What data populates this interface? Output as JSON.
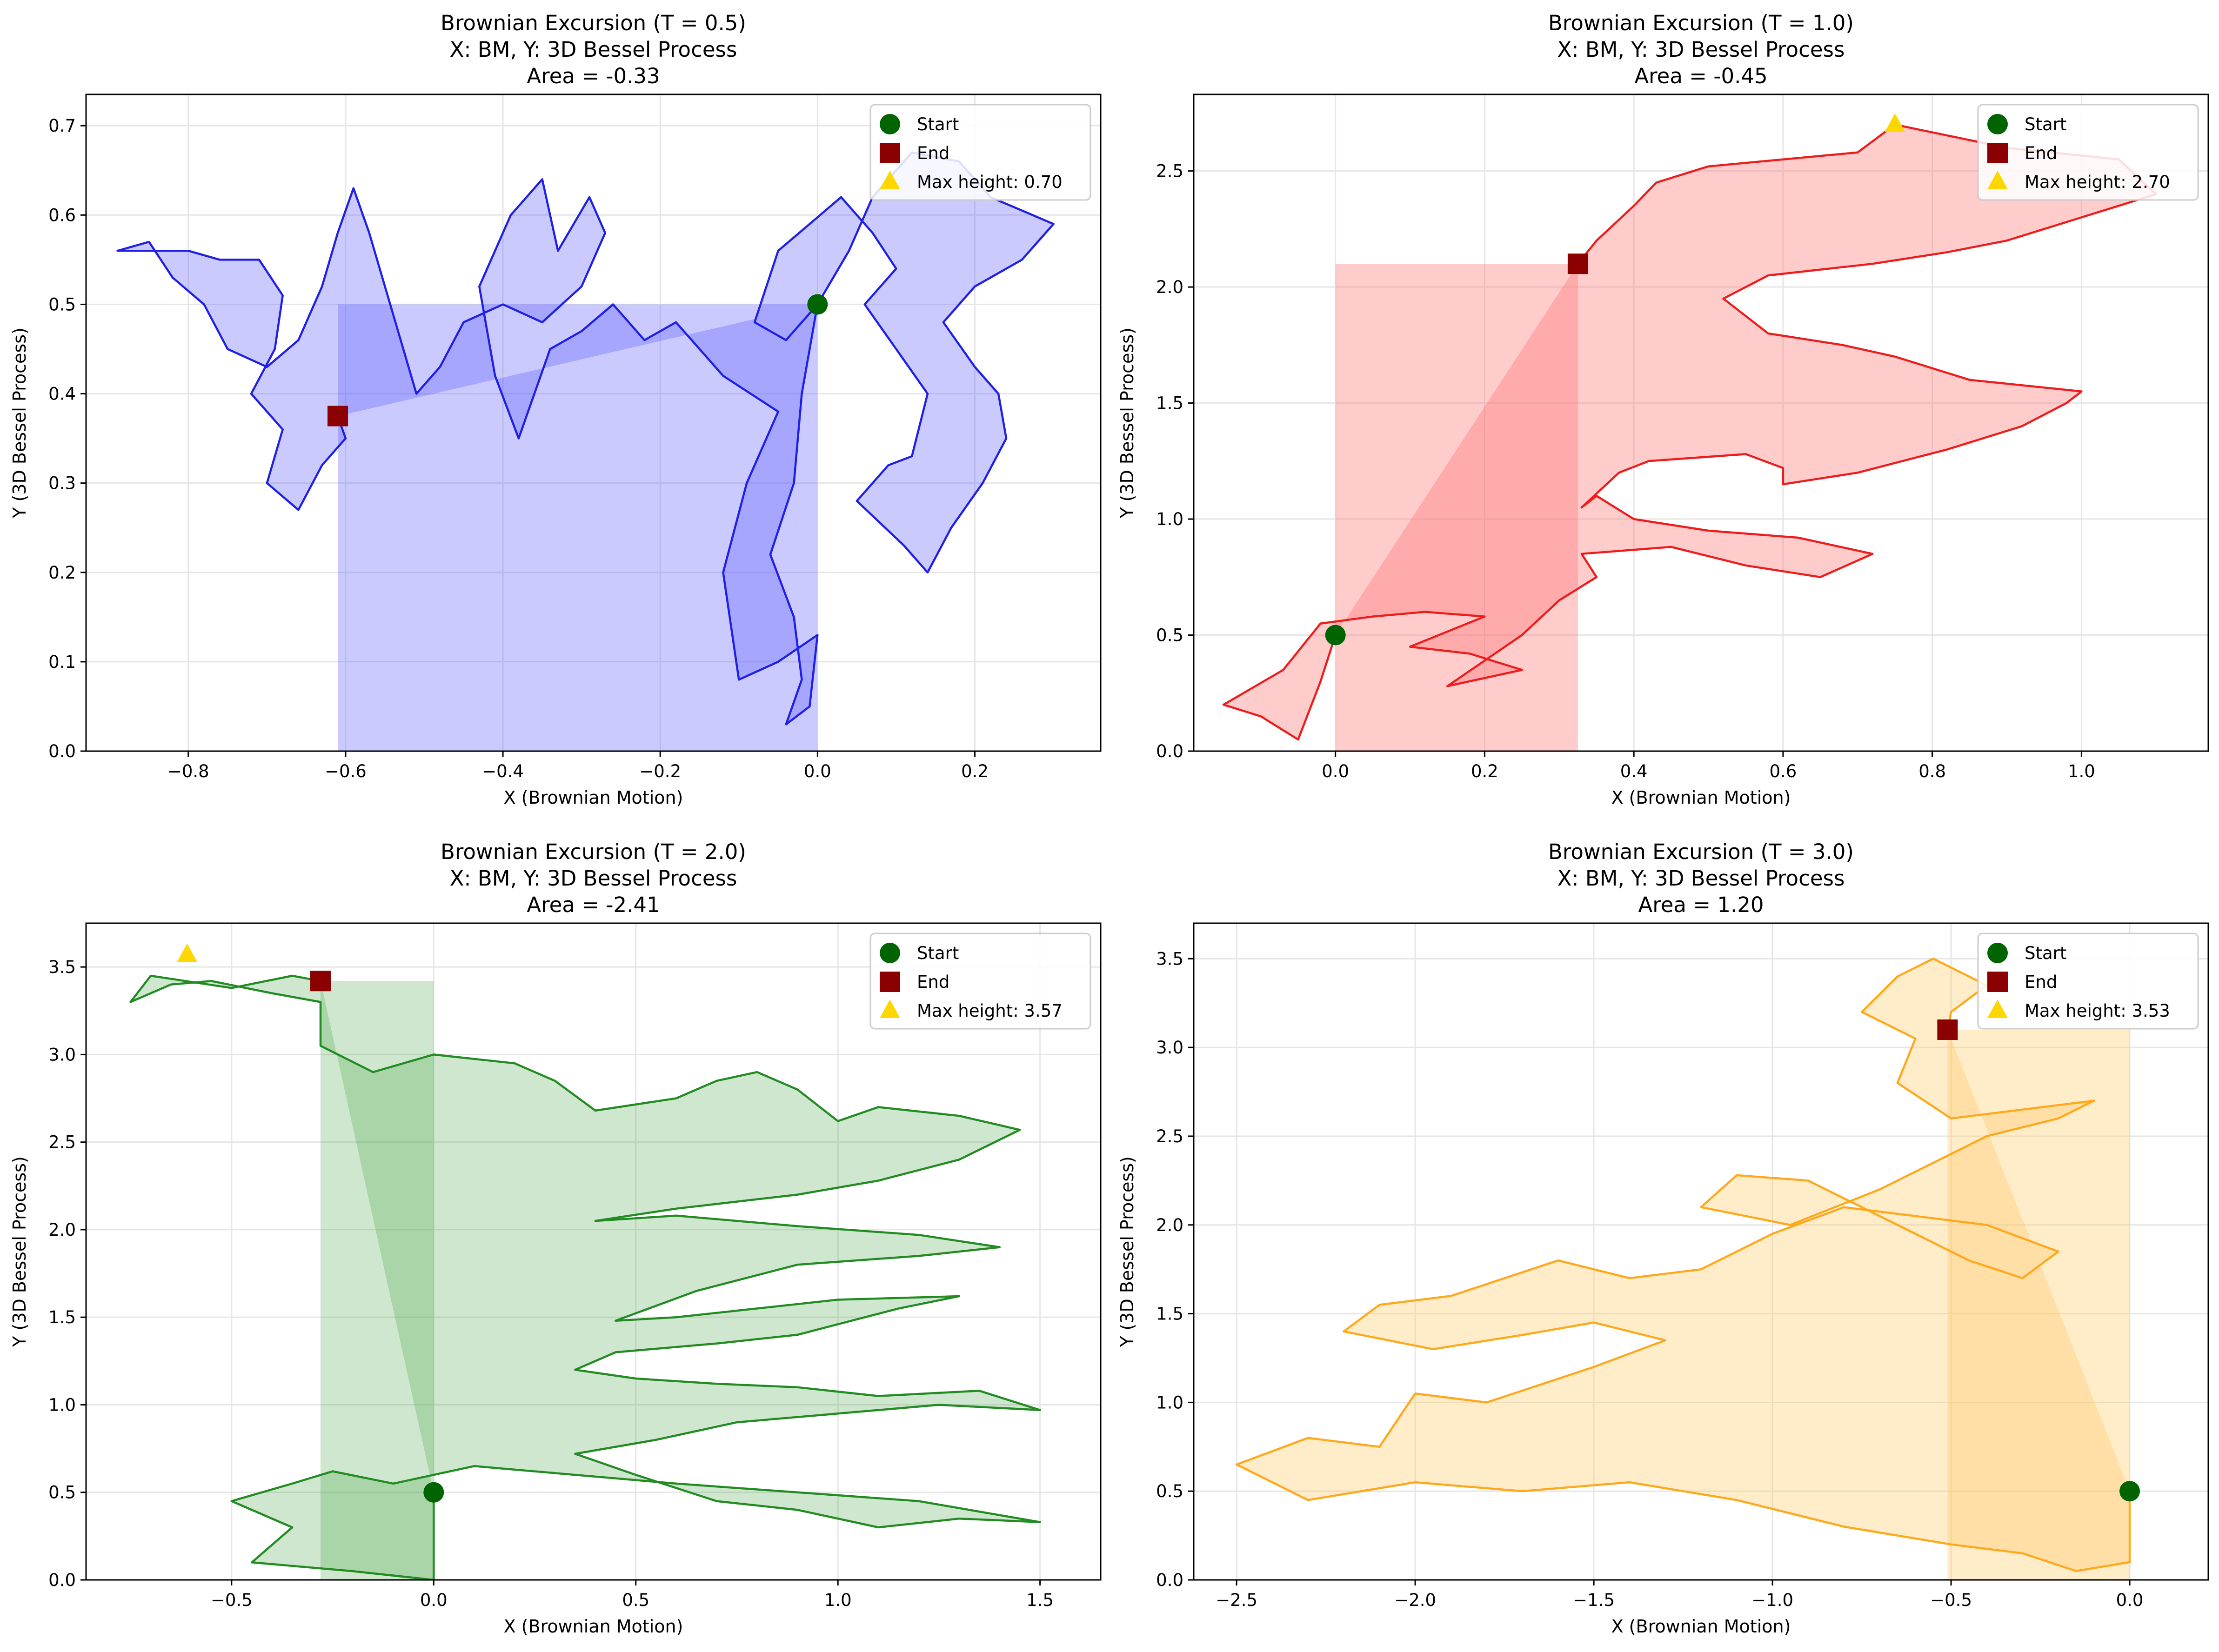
{
  "colors": {
    "start_marker": "#006400",
    "end_marker": "#8b0000",
    "max_marker": "#ffd700",
    "grid": "#e6e6e6",
    "axes": "#000000"
  },
  "chart_data": [
    {
      "type": "line",
      "title_lines": [
        "Brownian Excursion (T = 0.5)",
        "X: BM, Y: 3D Bessel Process",
        "Area = -0.33"
      ],
      "xlabel": "X (Brownian Motion)",
      "ylabel": "Y (3D Bessel Process)",
      "xlim": [
        -0.93,
        0.36
      ],
      "ylim": [
        0,
        0.735
      ],
      "xticks": [
        -0.8,
        -0.6,
        -0.4,
        -0.2,
        0.0,
        0.2
      ],
      "xtick_labels": [
        "−0.8",
        "−0.6",
        "−0.4",
        "−0.2",
        "0.0",
        "0.2"
      ],
      "yticks": [
        0.0,
        0.1,
        0.2,
        0.3,
        0.4,
        0.5,
        0.6,
        0.7
      ],
      "ytick_labels": [
        "0.0",
        "0.1",
        "0.2",
        "0.3",
        "0.4",
        "0.5",
        "0.6",
        "0.7"
      ],
      "grid": true,
      "legend_position": "upper right",
      "series_color": "#1f1fe6",
      "fill_color": "rgba(90,90,255,0.32)",
      "start": [
        0.0,
        0.5
      ],
      "end": [
        -0.61,
        0.375
      ],
      "max_point": null,
      "legend": [
        "Start",
        "End",
        "Max height: 0.70"
      ],
      "path": [
        [
          0.0,
          0.5
        ],
        [
          -0.04,
          0.46
        ],
        [
          -0.08,
          0.48
        ],
        [
          -0.05,
          0.56
        ],
        [
          0.03,
          0.62
        ],
        [
          0.07,
          0.58
        ],
        [
          0.1,
          0.54
        ],
        [
          0.06,
          0.5
        ],
        [
          0.1,
          0.45
        ],
        [
          0.14,
          0.4
        ],
        [
          0.12,
          0.33
        ],
        [
          0.09,
          0.32
        ],
        [
          0.05,
          0.28
        ],
        [
          0.11,
          0.23
        ],
        [
          0.14,
          0.2
        ],
        [
          0.17,
          0.25
        ],
        [
          0.21,
          0.3
        ],
        [
          0.24,
          0.35
        ],
        [
          0.23,
          0.4
        ],
        [
          0.2,
          0.43
        ],
        [
          0.16,
          0.48
        ],
        [
          0.2,
          0.52
        ],
        [
          0.26,
          0.55
        ],
        [
          0.3,
          0.59
        ],
        [
          0.22,
          0.62
        ],
        [
          0.18,
          0.66
        ],
        [
          0.12,
          0.67
        ],
        [
          0.07,
          0.62
        ],
        [
          0.04,
          0.56
        ],
        [
          0.0,
          0.5
        ],
        [
          -0.02,
          0.4
        ],
        [
          -0.03,
          0.3
        ],
        [
          -0.06,
          0.22
        ],
        [
          -0.03,
          0.15
        ],
        [
          -0.02,
          0.08
        ],
        [
          -0.04,
          0.03
        ],
        [
          -0.01,
          0.05
        ],
        [
          0.0,
          0.13
        ],
        [
          -0.05,
          0.1
        ],
        [
          -0.1,
          0.08
        ],
        [
          -0.12,
          0.2
        ],
        [
          -0.09,
          0.3
        ],
        [
          -0.05,
          0.38
        ],
        [
          -0.12,
          0.42
        ],
        [
          -0.18,
          0.48
        ],
        [
          -0.22,
          0.46
        ],
        [
          -0.26,
          0.5
        ],
        [
          -0.3,
          0.47
        ],
        [
          -0.34,
          0.45
        ],
        [
          -0.36,
          0.4
        ],
        [
          -0.38,
          0.35
        ],
        [
          -0.41,
          0.42
        ],
        [
          -0.43,
          0.52
        ],
        [
          -0.39,
          0.6
        ],
        [
          -0.35,
          0.64
        ],
        [
          -0.33,
          0.56
        ],
        [
          -0.29,
          0.62
        ],
        [
          -0.27,
          0.58
        ],
        [
          -0.3,
          0.52
        ],
        [
          -0.35,
          0.48
        ],
        [
          -0.4,
          0.5
        ],
        [
          -0.45,
          0.48
        ],
        [
          -0.48,
          0.43
        ],
        [
          -0.51,
          0.4
        ],
        [
          -0.53,
          0.46
        ],
        [
          -0.55,
          0.52
        ],
        [
          -0.57,
          0.58
        ],
        [
          -0.59,
          0.63
        ],
        [
          -0.61,
          0.58
        ],
        [
          -0.63,
          0.52
        ],
        [
          -0.66,
          0.46
        ],
        [
          -0.7,
          0.43
        ],
        [
          -0.75,
          0.45
        ],
        [
          -0.78,
          0.5
        ],
        [
          -0.82,
          0.53
        ],
        [
          -0.85,
          0.57
        ],
        [
          -0.89,
          0.56
        ],
        [
          -0.85,
          0.56
        ],
        [
          -0.8,
          0.56
        ],
        [
          -0.76,
          0.55
        ],
        [
          -0.71,
          0.55
        ],
        [
          -0.68,
          0.51
        ],
        [
          -0.69,
          0.45
        ],
        [
          -0.72,
          0.4
        ],
        [
          -0.68,
          0.36
        ],
        [
          -0.7,
          0.3
        ],
        [
          -0.66,
          0.27
        ],
        [
          -0.63,
          0.32
        ],
        [
          -0.6,
          0.35
        ],
        [
          -0.61,
          0.375
        ]
      ],
      "fill_x": [
        -0.61,
        0.0
      ],
      "fill_top": 0.5
    },
    {
      "type": "line",
      "title_lines": [
        "Brownian Excursion (T = 1.0)",
        "X: BM, Y: 3D Bessel Process",
        "Area = -0.45"
      ],
      "xlabel": "X (Brownian Motion)",
      "ylabel": "Y (3D Bessel Process)",
      "xlim": [
        -0.19,
        1.17
      ],
      "ylim": [
        0,
        2.83
      ],
      "xticks": [
        0.0,
        0.2,
        0.4,
        0.6,
        0.8,
        1.0
      ],
      "xtick_labels": [
        "0.0",
        "0.2",
        "0.4",
        "0.6",
        "0.8",
        "1.0"
      ],
      "yticks": [
        0.0,
        0.5,
        1.0,
        1.5,
        2.0,
        2.5
      ],
      "ytick_labels": [
        "0.0",
        "0.5",
        "1.0",
        "1.5",
        "2.0",
        "2.5"
      ],
      "grid": true,
      "legend_position": "upper right",
      "series_color": "#ee1c1c",
      "fill_color": "rgba(255,110,110,0.35)",
      "start": [
        0.0,
        0.5
      ],
      "end": [
        0.325,
        2.1
      ],
      "max_point": [
        0.75,
        2.7
      ],
      "legend": [
        "Start",
        "End",
        "Max height: 2.70"
      ],
      "path": [
        [
          0.0,
          0.5
        ],
        [
          -0.02,
          0.3
        ],
        [
          -0.05,
          0.05
        ],
        [
          -0.1,
          0.15
        ],
        [
          -0.15,
          0.2
        ],
        [
          -0.07,
          0.35
        ],
        [
          -0.02,
          0.55
        ],
        [
          0.05,
          0.58
        ],
        [
          0.12,
          0.6
        ],
        [
          0.2,
          0.58
        ],
        [
          0.1,
          0.45
        ],
        [
          0.18,
          0.42
        ],
        [
          0.25,
          0.35
        ],
        [
          0.15,
          0.28
        ],
        [
          0.25,
          0.5
        ],
        [
          0.3,
          0.65
        ],
        [
          0.35,
          0.75
        ],
        [
          0.33,
          0.85
        ],
        [
          0.45,
          0.88
        ],
        [
          0.55,
          0.8
        ],
        [
          0.65,
          0.75
        ],
        [
          0.72,
          0.85
        ],
        [
          0.62,
          0.92
        ],
        [
          0.5,
          0.95
        ],
        [
          0.4,
          1.0
        ],
        [
          0.35,
          1.1
        ],
        [
          0.33,
          1.05
        ],
        [
          0.38,
          1.2
        ],
        [
          0.42,
          1.25
        ],
        [
          0.55,
          1.28
        ],
        [
          0.6,
          1.22
        ],
        [
          0.6,
          1.15
        ],
        [
          0.7,
          1.2
        ],
        [
          0.82,
          1.3
        ],
        [
          0.92,
          1.4
        ],
        [
          0.98,
          1.5
        ],
        [
          1.0,
          1.55
        ],
        [
          0.85,
          1.6
        ],
        [
          0.75,
          1.7
        ],
        [
          0.68,
          1.75
        ],
        [
          0.58,
          1.8
        ],
        [
          0.52,
          1.95
        ],
        [
          0.58,
          2.05
        ],
        [
          0.72,
          2.1
        ],
        [
          0.82,
          2.15
        ],
        [
          0.9,
          2.2
        ],
        [
          1.0,
          2.3
        ],
        [
          1.1,
          2.4
        ],
        [
          1.05,
          2.55
        ],
        [
          0.9,
          2.6
        ],
        [
          0.75,
          2.7
        ],
        [
          0.7,
          2.58
        ],
        [
          0.6,
          2.55
        ],
        [
          0.5,
          2.52
        ],
        [
          0.43,
          2.45
        ],
        [
          0.4,
          2.35
        ],
        [
          0.35,
          2.2
        ],
        [
          0.33,
          2.12
        ],
        [
          0.325,
          2.1
        ]
      ],
      "fill_x": [
        0.0,
        0.325
      ],
      "fill_top": 2.1
    },
    {
      "type": "line",
      "title_lines": [
        "Brownian Excursion (T = 2.0)",
        "X: BM, Y: 3D Bessel Process",
        "Area = -2.41"
      ],
      "xlabel": "X (Brownian Motion)",
      "ylabel": "Y (3D Bessel Process)",
      "xlim": [
        -0.86,
        1.65
      ],
      "ylim": [
        0,
        3.75
      ],
      "xticks": [
        -0.5,
        0.0,
        0.5,
        1.0,
        1.5
      ],
      "xtick_labels": [
        "−0.5",
        "0.0",
        "0.5",
        "1.0",
        "1.5"
      ],
      "yticks": [
        0.0,
        0.5,
        1.0,
        1.5,
        2.0,
        2.5,
        3.0,
        3.5
      ],
      "ytick_labels": [
        "0.0",
        "0.5",
        "1.0",
        "1.5",
        "2.0",
        "2.5",
        "3.0",
        "3.5"
      ],
      "grid": true,
      "legend_position": "upper right",
      "series_color": "#228b22",
      "fill_color": "rgba(60,160,60,0.25)",
      "start": [
        0.0,
        0.5
      ],
      "end": [
        -0.28,
        3.42
      ],
      "max_point": [
        -0.61,
        3.57
      ],
      "legend": [
        "Start",
        "End",
        "Max height: 3.57"
      ],
      "path": [
        [
          0.0,
          0.5
        ],
        [
          0.0,
          0.0
        ],
        [
          -0.2,
          0.05
        ],
        [
          -0.45,
          0.1
        ],
        [
          -0.35,
          0.3
        ],
        [
          -0.5,
          0.45
        ],
        [
          -0.35,
          0.55
        ],
        [
          -0.25,
          0.62
        ],
        [
          -0.1,
          0.55
        ],
        [
          0.1,
          0.65
        ],
        [
          0.35,
          0.6
        ],
        [
          0.6,
          0.55
        ],
        [
          0.9,
          0.5
        ],
        [
          1.2,
          0.45
        ],
        [
          1.5,
          0.33
        ],
        [
          1.3,
          0.35
        ],
        [
          1.1,
          0.3
        ],
        [
          0.9,
          0.4
        ],
        [
          0.7,
          0.45
        ],
        [
          0.5,
          0.6
        ],
        [
          0.35,
          0.72
        ],
        [
          0.55,
          0.8
        ],
        [
          0.75,
          0.9
        ],
        [
          1.0,
          0.95
        ],
        [
          1.25,
          1.0
        ],
        [
          1.5,
          0.97
        ],
        [
          1.35,
          1.08
        ],
        [
          1.1,
          1.05
        ],
        [
          0.9,
          1.1
        ],
        [
          0.7,
          1.12
        ],
        [
          0.5,
          1.15
        ],
        [
          0.35,
          1.2
        ],
        [
          0.45,
          1.3
        ],
        [
          0.7,
          1.35
        ],
        [
          0.9,
          1.4
        ],
        [
          1.15,
          1.55
        ],
        [
          1.3,
          1.62
        ],
        [
          1.0,
          1.6
        ],
        [
          0.8,
          1.55
        ],
        [
          0.6,
          1.5
        ],
        [
          0.45,
          1.48
        ],
        [
          0.65,
          1.65
        ],
        [
          0.9,
          1.8
        ],
        [
          1.2,
          1.85
        ],
        [
          1.4,
          1.9
        ],
        [
          1.2,
          1.97
        ],
        [
          0.9,
          2.02
        ],
        [
          0.6,
          2.08
        ],
        [
          0.4,
          2.05
        ],
        [
          0.6,
          2.12
        ],
        [
          0.9,
          2.2
        ],
        [
          1.1,
          2.28
        ],
        [
          1.3,
          2.4
        ],
        [
          1.45,
          2.57
        ],
        [
          1.3,
          2.65
        ],
        [
          1.1,
          2.7
        ],
        [
          1.0,
          2.62
        ],
        [
          0.9,
          2.8
        ],
        [
          0.8,
          2.9
        ],
        [
          0.7,
          2.85
        ],
        [
          0.6,
          2.75
        ],
        [
          0.4,
          2.68
        ],
        [
          0.3,
          2.85
        ],
        [
          0.2,
          2.95
        ],
        [
          0.0,
          3.0
        ],
        [
          -0.15,
          2.9
        ],
        [
          -0.28,
          3.05
        ],
        [
          -0.28,
          3.3
        ],
        [
          -0.4,
          3.35
        ],
        [
          -0.55,
          3.42
        ],
        [
          -0.65,
          3.4
        ],
        [
          -0.75,
          3.3
        ],
        [
          -0.7,
          3.45
        ],
        [
          -0.5,
          3.38
        ],
        [
          -0.35,
          3.45
        ],
        [
          -0.28,
          3.42
        ]
      ],
      "fill_x": [
        -0.28,
        0.0
      ],
      "fill_top": 3.42
    },
    {
      "type": "line",
      "title_lines": [
        "Brownian Excursion (T = 3.0)",
        "X: BM, Y: 3D Bessel Process",
        "Area = 1.20"
      ],
      "xlabel": "X (Brownian Motion)",
      "ylabel": "Y (3D Bessel Process)",
      "xlim": [
        -2.62,
        0.22
      ],
      "ylim": [
        0,
        3.7
      ],
      "xticks": [
        -2.5,
        -2.0,
        -1.5,
        -1.0,
        -0.5,
        0.0
      ],
      "xtick_labels": [
        "−2.5",
        "−2.0",
        "−1.5",
        "−1.0",
        "−0.5",
        "0.0"
      ],
      "yticks": [
        0.0,
        0.5,
        1.0,
        1.5,
        2.0,
        2.5,
        3.0,
        3.5
      ],
      "ytick_labels": [
        "0.0",
        "0.5",
        "1.0",
        "1.5",
        "2.0",
        "2.5",
        "3.0",
        "3.5"
      ],
      "grid": true,
      "legend_position": "upper right",
      "series_color": "#ffa81c",
      "fill_color": "rgba(255,200,100,0.35)",
      "start": [
        0.0,
        0.5
      ],
      "end": [
        -0.51,
        3.1
      ],
      "max_point": null,
      "legend": [
        "Start",
        "End",
        "Max height: 3.53"
      ],
      "path": [
        [
          0.0,
          0.5
        ],
        [
          0.0,
          0.1
        ],
        [
          -0.15,
          0.05
        ],
        [
          -0.3,
          0.15
        ],
        [
          -0.5,
          0.2
        ],
        [
          -0.8,
          0.3
        ],
        [
          -1.1,
          0.45
        ],
        [
          -1.4,
          0.55
        ],
        [
          -1.7,
          0.5
        ],
        [
          -2.0,
          0.55
        ],
        [
          -2.3,
          0.45
        ],
        [
          -2.5,
          0.65
        ],
        [
          -2.3,
          0.8
        ],
        [
          -2.1,
          0.75
        ],
        [
          -2.0,
          1.05
        ],
        [
          -1.8,
          1.0
        ],
        [
          -1.5,
          1.2
        ],
        [
          -1.3,
          1.35
        ],
        [
          -1.5,
          1.45
        ],
        [
          -1.7,
          1.38
        ],
        [
          -1.95,
          1.3
        ],
        [
          -2.2,
          1.4
        ],
        [
          -2.1,
          1.55
        ],
        [
          -1.9,
          1.6
        ],
        [
          -1.6,
          1.8
        ],
        [
          -1.4,
          1.7
        ],
        [
          -1.2,
          1.75
        ],
        [
          -1.0,
          1.95
        ],
        [
          -0.8,
          2.1
        ],
        [
          -0.6,
          2.05
        ],
        [
          -0.4,
          2.0
        ],
        [
          -0.2,
          1.85
        ],
        [
          -0.3,
          1.7
        ],
        [
          -0.45,
          1.8
        ],
        [
          -0.6,
          1.95
        ],
        [
          -0.75,
          2.1
        ],
        [
          -0.9,
          2.25
        ],
        [
          -1.1,
          2.28
        ],
        [
          -1.2,
          2.1
        ],
        [
          -0.95,
          2.0
        ],
        [
          -0.7,
          2.2
        ],
        [
          -0.55,
          2.35
        ],
        [
          -0.4,
          2.5
        ],
        [
          -0.2,
          2.6
        ],
        [
          -0.1,
          2.7
        ],
        [
          -0.3,
          2.65
        ],
        [
          -0.5,
          2.6
        ],
        [
          -0.65,
          2.8
        ],
        [
          -0.6,
          3.05
        ],
        [
          -0.75,
          3.2
        ],
        [
          -0.65,
          3.4
        ],
        [
          -0.55,
          3.5
        ],
        [
          -0.4,
          3.35
        ],
        [
          -0.5,
          3.2
        ],
        [
          -0.51,
          3.1
        ]
      ],
      "fill_x": [
        -0.51,
        0.0
      ],
      "fill_top": 3.1
    }
  ]
}
